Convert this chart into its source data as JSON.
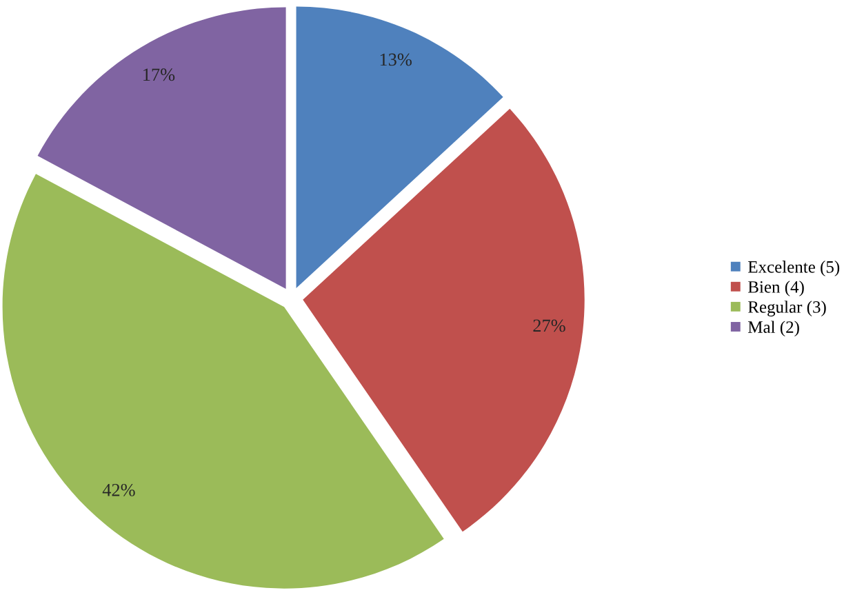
{
  "chart_data": {
    "type": "pie",
    "categories": [
      "Excelente (5)",
      "Bien (4)",
      "Regular (3)",
      "Mal (2)"
    ],
    "values": [
      13,
      27,
      42,
      17
    ],
    "value_labels": [
      "13%",
      "27%",
      "42%",
      "17%"
    ],
    "colors": [
      "#4f81bd",
      "#c0504d",
      "#9bbb59",
      "#8064a2"
    ],
    "legend": "right"
  }
}
